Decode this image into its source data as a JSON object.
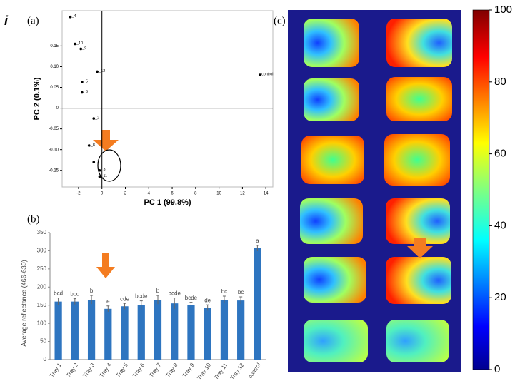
{
  "figure_label": "i",
  "chart_data": [
    {
      "type": "scatter",
      "panel": "(a)",
      "xlabel": "PC 1 (99.8%)",
      "ylabel": "PC 2 (0.1%)",
      "x": [
        -2.7,
        -2.3,
        -1.8,
        -0.4,
        -1.7,
        -1.7,
        -0.7,
        -1.1,
        -0.7,
        -0.2,
        -0.2,
        13.5
      ],
      "values": [
        0.22,
        0.155,
        0.143,
        0.088,
        0.063,
        0.038,
        -0.025,
        -0.09,
        -0.13,
        -0.15,
        -0.165,
        0.08
      ],
      "labels": [
        "_4",
        "_10",
        "_9",
        "_12",
        "_5",
        "_6",
        "_2",
        "_8",
        "_1",
        "_3",
        "_11",
        "control"
      ],
      "color": "#000000",
      "xlim": [
        -3.4,
        14.6
      ],
      "ylim": [
        -0.19,
        0.235
      ],
      "xticks": [
        -2,
        0,
        2,
        4,
        6,
        8,
        10,
        12,
        14
      ],
      "yticks": [
        {
          "value": -0.15,
          "label": "-0.15"
        },
        {
          "value": -0.1,
          "label": "-0.10"
        },
        {
          "value": -0.05,
          "label": "-0.05"
        },
        0,
        {
          "value": 0.05,
          "label": "0.05"
        },
        {
          "value": 0.1,
          "label": "0.10"
        },
        {
          "value": 0.15,
          "label": "0.15"
        }
      ]
    },
    {
      "type": "bar",
      "panel": "(b)",
      "ylabel": "Average reflectance (466-639)",
      "categories": [
        "Tray 1",
        "Tray 2",
        "Tray 3",
        "Tray 4",
        "Tray 5",
        "Tray 6",
        "Tray 7",
        "Tray 8",
        "Tray 9",
        "Tray 10",
        "Tray 11",
        "Tray 12",
        "control"
      ],
      "values": [
        160,
        160,
        165,
        140,
        147,
        150,
        165,
        155,
        150,
        143,
        165,
        163,
        307
      ],
      "errors": [
        10,
        8,
        12,
        8,
        8,
        12,
        12,
        15,
        8,
        8,
        10,
        10,
        8
      ],
      "significance": [
        "bcd",
        "bcd",
        "b",
        "e",
        "cde",
        "bcde",
        "b",
        "bcde",
        "bcde",
        "de",
        "bc",
        "bc",
        "a"
      ],
      "color": "#2e75c0",
      "ylim": [
        0,
        350
      ],
      "yticks": [
        0,
        50,
        100,
        150,
        200,
        250,
        300,
        350
      ]
    },
    {
      "type": "colorbar",
      "panel": "(c)",
      "ylim": [
        0,
        100
      ],
      "yticks": [
        0,
        20,
        40,
        60,
        80,
        100
      ]
    }
  ]
}
